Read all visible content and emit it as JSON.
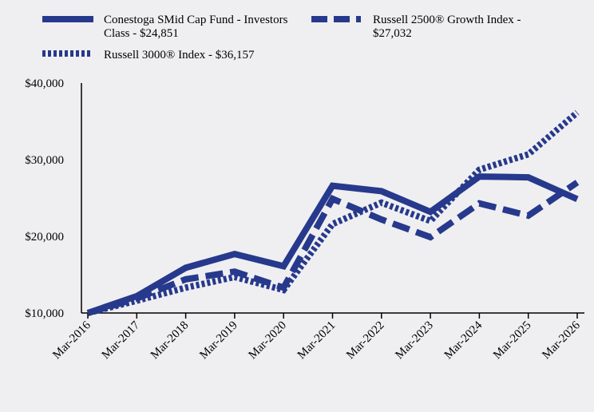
{
  "chart_data": {
    "type": "line",
    "categories": [
      "Mar-2016",
      "Mar-2017",
      "Mar-2018",
      "Mar-2019",
      "Mar-2020",
      "Mar-2021",
      "Mar-2022",
      "Mar-2023",
      "Mar-2024",
      "Mar-2025",
      "Mar-2026"
    ],
    "y_ticks": [
      "$10,000",
      "$20,000",
      "$30,000",
      "$40,000"
    ],
    "ylim": [
      10000,
      40000
    ],
    "legend_position": "top",
    "grid": false,
    "series": [
      {
        "legend_line1": "Conestoga SMid Cap Fund - Investors",
        "legend_line2": "Class - $24,851",
        "style": "solid",
        "color": "#27398c",
        "values": [
          10000,
          12200,
          15900,
          17700,
          16100,
          26600,
          25900,
          23200,
          27800,
          27700,
          24851
        ]
      },
      {
        "legend_line1": "Russell 2500® Growth Index -",
        "legend_line2": "$27,032",
        "style": "dashed",
        "color": "#27398c",
        "values": [
          10000,
          11900,
          14400,
          15400,
          13300,
          24900,
          22200,
          19900,
          24300,
          22700,
          27032
        ]
      },
      {
        "legend_line1": "Russell 3000® Index - $36,157",
        "legend_line2": "",
        "style": "dotted",
        "color": "#27398c",
        "values": [
          10000,
          11600,
          13300,
          14700,
          13000,
          21600,
          24400,
          22000,
          28700,
          30700,
          36157
        ]
      }
    ]
  }
}
